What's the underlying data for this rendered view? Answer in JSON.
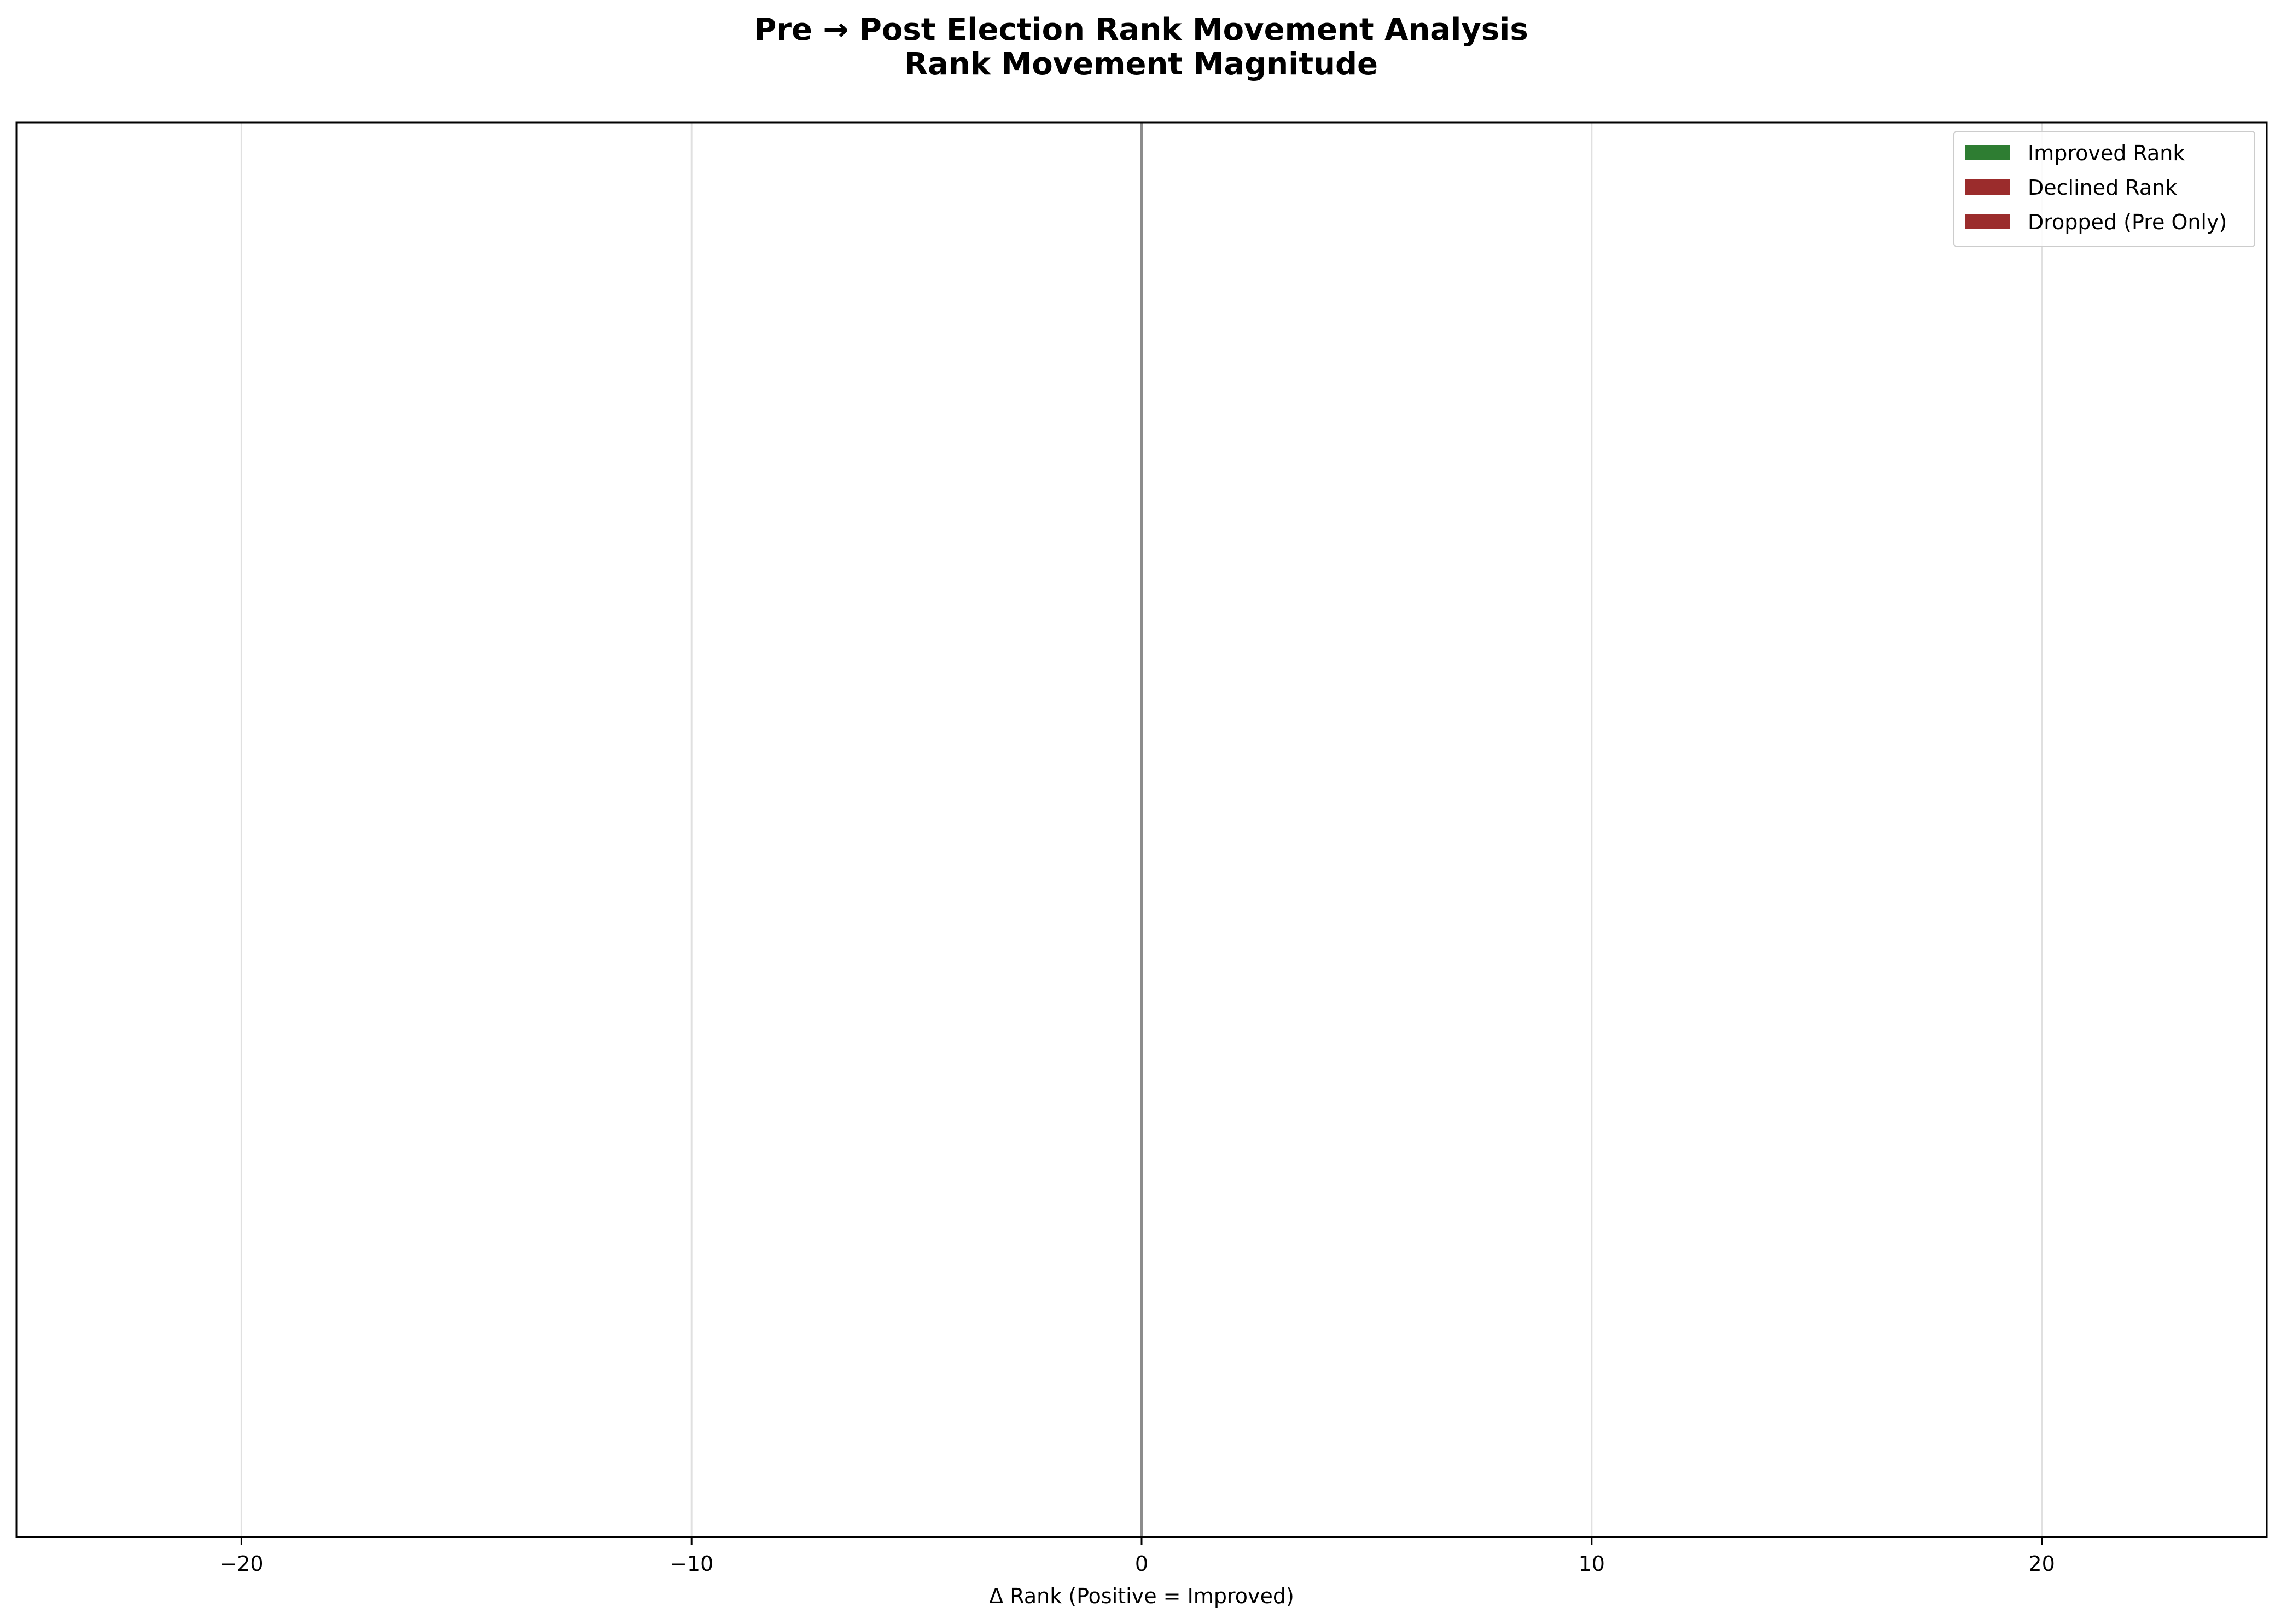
{
  "chart_data": {
    "type": "bar",
    "orientation": "horizontal",
    "title": "Pre → Post Election Rank Movement Analysis",
    "subtitle": "Rank Movement Magnitude",
    "xlabel": "Δ Rank (Positive = Improved)",
    "ylabel": "",
    "xlim": [
      -25,
      25
    ],
    "xticks": [
      -20,
      -10,
      0,
      10,
      20
    ],
    "xtick_labels": [
      "−20",
      "−10",
      "0",
      "10",
      "20"
    ],
    "categories": [],
    "series": [
      {
        "name": "Improved Rank",
        "color": "#2e7d32",
        "values": []
      },
      {
        "name": "Declined Rank",
        "color": "#9b2c2c",
        "values": []
      },
      {
        "name": "Dropped (Pre Only)",
        "color": "#9b2c2c",
        "values": []
      }
    ],
    "grid": "vertical",
    "zero_line": true,
    "legend_position": "top-right"
  }
}
